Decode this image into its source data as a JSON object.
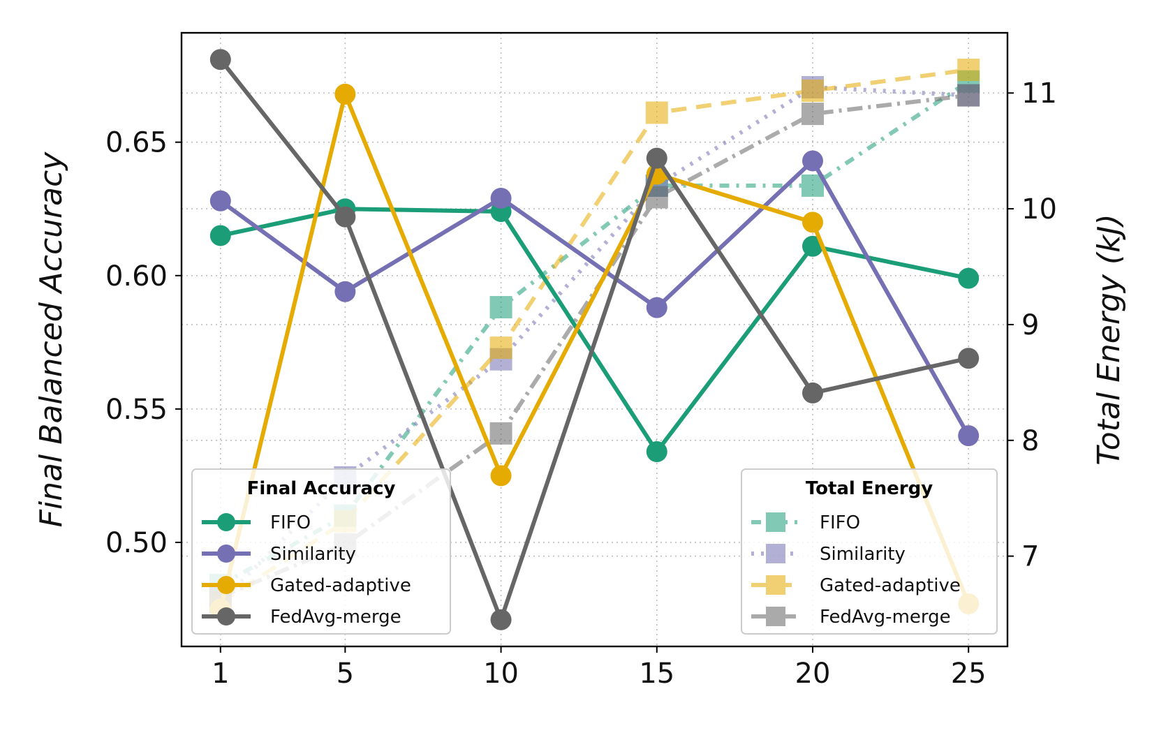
{
  "chart_data": {
    "type": "line",
    "x": [
      1,
      5,
      10,
      15,
      20,
      25
    ],
    "x_ticks": [
      "1",
      "5",
      "10",
      "15",
      "20",
      "25"
    ],
    "xlim": [
      -0.25,
      26.25
    ],
    "y_left": {
      "label": "Final Balanced Accuracy",
      "lim": [
        0.461,
        0.691
      ],
      "ticks": [
        "0.50",
        "0.55",
        "0.60",
        "0.65"
      ],
      "tick_values": [
        0.5,
        0.55,
        0.6,
        0.65
      ]
    },
    "y_right": {
      "label": "Total Energy (kJ)",
      "lim": [
        6.22,
        11.52
      ],
      "ticks": [
        "7",
        "8",
        "9",
        "10",
        "11"
      ],
      "tick_values": [
        7,
        8,
        9,
        10,
        11
      ]
    },
    "grid": true,
    "accuracy_series": [
      {
        "name": "FIFO",
        "color": "#1b9e77",
        "values": [
          0.615,
          0.625,
          0.624,
          0.534,
          0.611,
          0.599
        ]
      },
      {
        "name": "Similarity",
        "color": "#7570b3",
        "values": [
          0.628,
          0.594,
          0.629,
          0.588,
          0.643,
          0.54
        ]
      },
      {
        "name": "Gated-adaptive",
        "color": "#e6ab02",
        "values": [
          0.475,
          0.668,
          0.525,
          0.638,
          0.62,
          0.477
        ]
      },
      {
        "name": "FedAvg-merge",
        "color": "#666666",
        "values": [
          0.681,
          0.622,
          0.471,
          0.644,
          0.556,
          0.569
        ]
      }
    ],
    "energy_series": [
      {
        "name": "FIFO",
        "color": "#1b9e77",
        "values": [
          6.75,
          7.35,
          9.15,
          10.2,
          10.2,
          11.1
        ]
      },
      {
        "name": "Similarity",
        "color": "#7570b3",
        "values": [
          6.6,
          7.68,
          8.7,
          10.2,
          11.05,
          10.98
        ]
      },
      {
        "name": "Gated-adaptive",
        "color": "#e6ab02",
        "values": [
          6.6,
          7.3,
          8.8,
          10.83,
          11.02,
          11.2
        ]
      },
      {
        "name": "FedAvg-merge",
        "color": "#666666",
        "values": [
          6.65,
          7.1,
          8.06,
          10.1,
          10.82,
          10.98
        ]
      }
    ],
    "legend_accuracy": {
      "title": "Final Accuracy",
      "position": "lower-left"
    },
    "legend_energy": {
      "title": "Total Energy",
      "position": "lower-right"
    }
  }
}
